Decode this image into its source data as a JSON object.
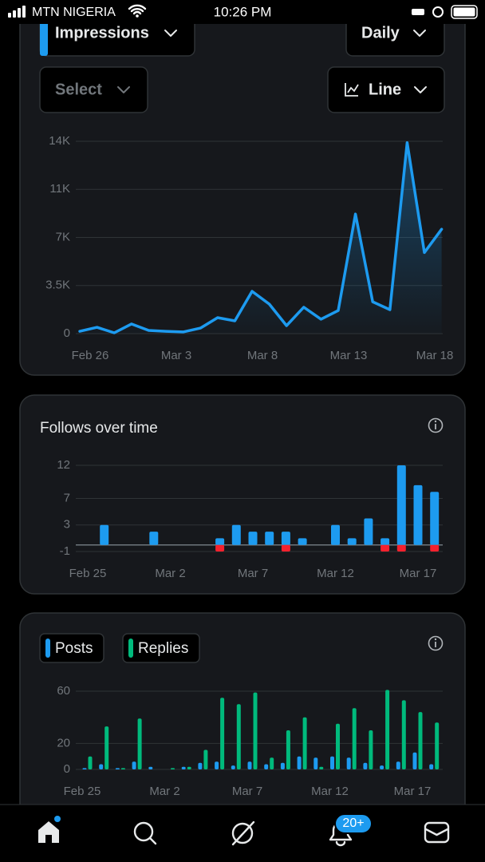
{
  "status_bar": {
    "carrier": "MTN NIGERIA",
    "time": "10:26 PM"
  },
  "controls": {
    "metric": "Impressions",
    "interval": "Daily",
    "select": "Select",
    "chart_type": "Line"
  },
  "charts": [
    {
      "type": "line",
      "color": "#1d9bf0",
      "categories": [
        "Feb 26",
        null,
        null,
        null,
        null,
        "Mar 3",
        null,
        null,
        null,
        null,
        "Mar 8",
        null,
        null,
        null,
        null,
        "Mar 13",
        null,
        null,
        null,
        null,
        "Mar 18",
        null
      ],
      "values": [
        170,
        460,
        60,
        700,
        230,
        170,
        120,
        400,
        1160,
        930,
        3080,
        2150,
        580,
        1920,
        1050,
        1680,
        8700,
        2320,
        1740,
        13900,
        5900,
        7600
      ],
      "ylim": [
        0,
        14000
      ],
      "yticks": [
        0,
        {
          "value": 3500,
          "label": "3.5K"
        },
        {
          "value": 7000,
          "label": "7K"
        },
        {
          "value": 10500,
          "label": "11K"
        },
        {
          "value": 14000,
          "label": "14K"
        }
      ],
      "grid": true
    },
    {
      "type": "bar",
      "bar_mode": "overlay",
      "title": "Follows over time",
      "categories": [
        "Feb 25",
        null,
        null,
        null,
        null,
        "Mar 2",
        null,
        null,
        null,
        null,
        "Mar 7",
        null,
        null,
        null,
        null,
        "Mar 12",
        null,
        null,
        null,
        null,
        "Mar 17",
        null
      ],
      "series": [
        {
          "color": "#1d9bf0",
          "values": [
            0,
            3,
            0,
            0,
            2,
            0,
            0,
            0,
            1,
            3,
            2,
            2,
            2,
            1,
            0,
            3,
            1,
            4,
            1,
            12,
            9,
            8
          ]
        },
        {
          "color": "#f4212e",
          "values": [
            0,
            0,
            0,
            0,
            0,
            0,
            0,
            0,
            -1,
            0,
            0,
            0,
            -1,
            0,
            0,
            0,
            0,
            0,
            -1,
            -1,
            0,
            -1
          ]
        }
      ],
      "ylim": [
        -1,
        12
      ],
      "yticks": [
        -1,
        3,
        7,
        12
      ],
      "grid": true
    },
    {
      "type": "bar",
      "bar_mode": "grouped",
      "categories": [
        "Feb 25",
        null,
        null,
        null,
        null,
        "Mar 2",
        null,
        null,
        null,
        null,
        "Mar 7",
        null,
        null,
        null,
        null,
        "Mar 12",
        null,
        null,
        null,
        null,
        "Mar 17",
        null
      ],
      "series": [
        {
          "name": "Posts",
          "color": "#1d9bf0",
          "values": [
            1,
            4,
            1,
            6,
            2,
            0,
            2,
            5,
            6,
            3,
            6,
            4,
            5,
            10,
            9,
            10,
            9,
            5,
            3,
            6,
            13,
            4
          ]
        },
        {
          "name": "Replies",
          "color": "#00ba7c",
          "values": [
            10,
            33,
            1,
            39,
            0,
            1,
            2,
            15,
            55,
            50,
            59,
            9,
            30,
            40,
            2,
            35,
            47,
            30,
            61,
            53,
            44,
            36
          ]
        }
      ],
      "ylim": [
        0,
        60
      ],
      "yticks": [
        0,
        20,
        60
      ],
      "grid": true
    }
  ],
  "nav": {
    "notifications_badge": "20+"
  }
}
